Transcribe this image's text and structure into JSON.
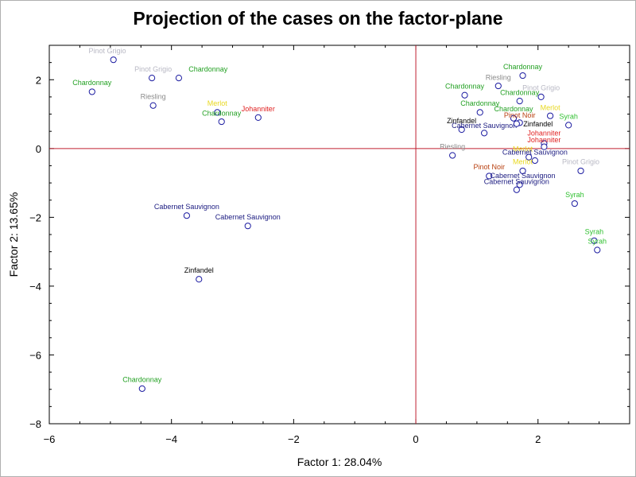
{
  "chart_data": {
    "type": "scatter",
    "title": "Projection of the cases on the factor-plane",
    "xlabel": "Factor 1: 28.04%",
    "ylabel": "Factor 2: 13.65%",
    "xlim": [
      -6,
      3.5
    ],
    "ylim": [
      -8,
      3
    ],
    "xticks": [
      -6,
      -4,
      -2,
      0,
      2
    ],
    "yticks": [
      -8,
      -6,
      -4,
      -2,
      0,
      2
    ],
    "reference_lines": {
      "x": 0,
      "y": 0,
      "color": "#c02030"
    },
    "grid": false,
    "colors": {
      "Chardonnay": "#22a022",
      "Pinot Grigio": "#b8b8c4",
      "Riesling": "#8a8a8a",
      "Merlot": "#e8d820",
      "Johanniter": "#e02020",
      "Cabernet Sauvignon": "#1a1a80",
      "Zinfandel": "#000000",
      "Pinot Noir": "#b84010",
      "Syrah": "#30c030",
      "marker": "#1a1aa0"
    },
    "points": [
      {
        "label": "Pinot Grigio",
        "x": -4.95,
        "y": 2.58,
        "lx": -5.05,
        "ly": 2.77
      },
      {
        "label": "Pinot Grigio",
        "x": -4.32,
        "y": 2.05,
        "lx": -4.3,
        "ly": 2.24
      },
      {
        "label": "Chardonnay",
        "x": -3.88,
        "y": 2.05,
        "lx": -3.4,
        "ly": 2.24
      },
      {
        "label": "Chardonnay",
        "x": -5.3,
        "y": 1.65,
        "lx": -5.3,
        "ly": 1.84
      },
      {
        "label": "Riesling",
        "x": -4.3,
        "y": 1.25,
        "lx": -4.3,
        "ly": 1.44
      },
      {
        "label": "Merlot",
        "x": -3.25,
        "y": 1.05,
        "lx": -3.25,
        "ly": 1.24
      },
      {
        "label": "Johanniter",
        "x": -2.58,
        "y": 0.9,
        "lx": -2.58,
        "ly": 1.08
      },
      {
        "label": "Chardonnay",
        "x": -3.18,
        "y": 0.78,
        "lx": -3.18,
        "ly": 0.96
      },
      {
        "label": "Cabernet Sauvignon",
        "x": -3.75,
        "y": -1.95,
        "lx": -3.75,
        "ly": -1.76
      },
      {
        "label": "Cabernet Sauvignon",
        "x": -2.75,
        "y": -2.25,
        "lx": -2.75,
        "ly": -2.06
      },
      {
        "label": "Zinfandel",
        "x": -3.55,
        "y": -3.8,
        "lx": -3.55,
        "ly": -3.61
      },
      {
        "label": "Chardonnay",
        "x": -4.48,
        "y": -6.98,
        "lx": -4.48,
        "ly": -6.79
      },
      {
        "label": "Chardonnay",
        "x": 1.75,
        "y": 2.12,
        "lx": 1.75,
        "ly": 2.31
      },
      {
        "label": "Riesling",
        "x": 1.35,
        "y": 1.82,
        "lx": 1.35,
        "ly": 2.0
      },
      {
        "label": "Pinot Grigio",
        "x": 2.05,
        "y": 1.5,
        "lx": 2.05,
        "ly": 1.69
      },
      {
        "label": "Chardonnay",
        "x": 0.8,
        "y": 1.55,
        "lx": 0.8,
        "ly": 1.74
      },
      {
        "label": "Chardonnay",
        "x": 1.7,
        "y": 1.38,
        "lx": 1.7,
        "ly": 1.56
      },
      {
        "label": "Chardonnay",
        "x": 1.05,
        "y": 1.05,
        "lx": 1.05,
        "ly": 1.24
      },
      {
        "label": "Merlot",
        "x": 2.2,
        "y": 0.95,
        "lx": 2.2,
        "ly": 1.12
      },
      {
        "label": "Chardonnay",
        "x": 1.6,
        "y": 0.88,
        "lx": 1.6,
        "ly": 1.08
      },
      {
        "label": "Pinot Noir",
        "x": 1.7,
        "y": 0.75,
        "lx": 1.7,
        "ly": 0.9
      },
      {
        "label": "Syrah",
        "x": 2.5,
        "y": 0.68,
        "lx": 2.5,
        "ly": 0.86
      },
      {
        "label": "Zinfandel",
        "x": 0.75,
        "y": 0.55,
        "lx": 0.75,
        "ly": 0.74
      },
      {
        "label": "Cabernet Sauvignon",
        "x": 1.12,
        "y": 0.45,
        "lx": 1.12,
        "ly": 0.6
      },
      {
        "label": "Zinfandel",
        "x": 1.65,
        "y": 0.72,
        "lx": 2.0,
        "ly": 0.64
      },
      {
        "label": "Johanniter",
        "x": 2.1,
        "y": 0.15,
        "lx": 2.1,
        "ly": 0.38
      },
      {
        "label": "Johanniter",
        "x": 2.1,
        "y": 0.05,
        "lx": 2.1,
        "ly": 0.18
      },
      {
        "label": "Merlot",
        "x": 1.85,
        "y": -0.25,
        "lx": 1.75,
        "ly": -0.08
      },
      {
        "label": "Cabernet Sauvignon",
        "x": 1.95,
        "y": -0.35,
        "lx": 1.95,
        "ly": -0.18
      },
      {
        "label": "Riesling",
        "x": 0.6,
        "y": -0.2,
        "lx": 0.6,
        "ly": -0.02
      },
      {
        "label": "Pinot Grigio",
        "x": 2.7,
        "y": -0.65,
        "lx": 2.7,
        "ly": -0.46
      },
      {
        "label": "Merlot",
        "x": 1.75,
        "y": -0.65,
        "lx": 1.75,
        "ly": -0.46
      },
      {
        "label": "Pinot Noir",
        "x": 1.2,
        "y": -0.8,
        "lx": 1.2,
        "ly": -0.6
      },
      {
        "label": "Cabernet Sauvignon",
        "x": 1.7,
        "y": -1.05,
        "lx": 1.75,
        "ly": -0.86
      },
      {
        "label": "Cabernet Sauvignon",
        "x": 1.65,
        "y": -1.2,
        "lx": 1.65,
        "ly": -1.03
      },
      {
        "label": "Syrah",
        "x": 2.6,
        "y": -1.6,
        "lx": 2.6,
        "ly": -1.41
      },
      {
        "label": "Syrah",
        "x": 2.92,
        "y": -2.68,
        "lx": 2.92,
        "ly": -2.49
      },
      {
        "label": "Syrah",
        "x": 2.97,
        "y": -2.95,
        "lx": 2.97,
        "ly": -2.76
      }
    ]
  }
}
